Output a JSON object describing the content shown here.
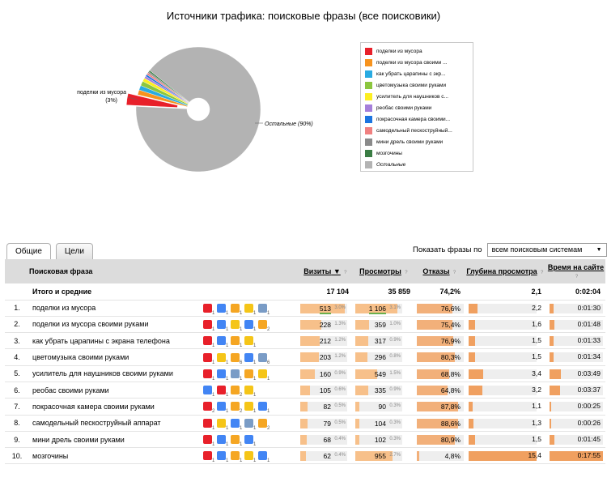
{
  "title": "Источники трафика: поисковые фразы (все поисковики)",
  "chart_data": {
    "type": "pie",
    "title": "Источники трафика: поисковые фразы (все поисковики)",
    "slices": [
      {
        "label": "поделки из мусора",
        "value": 3,
        "color": "#e8202a"
      },
      {
        "label": "поделки из мусора своими ...",
        "value": 1.3,
        "color": "#f7931e"
      },
      {
        "label": "как убрать царапины с экр...",
        "value": 1.2,
        "color": "#29abe2"
      },
      {
        "label": "цветомузыка своими руками",
        "value": 1.2,
        "color": "#8cc63f"
      },
      {
        "label": "усилитель для наушников с...",
        "value": 0.9,
        "color": "#fcee21"
      },
      {
        "label": "реобас своими руками",
        "value": 0.6,
        "color": "#a57fda"
      },
      {
        "label": "покрасочная камера своими...",
        "value": 0.5,
        "color": "#1c75e0"
      },
      {
        "label": "самодельный пескоструйный...",
        "value": 0.5,
        "color": "#f08080"
      },
      {
        "label": "мини дрель своими руками",
        "value": 0.4,
        "color": "#8a8a8a"
      },
      {
        "label": "мозгочины",
        "value": 0.4,
        "color": "#3a7d44"
      },
      {
        "label": "Остальные",
        "value": 90,
        "color": "#b3b3b3"
      }
    ],
    "callouts": {
      "first": "поделки из мусора",
      "first_pct": "(3%)",
      "other": "Остальные (90%)"
    }
  },
  "tabs": [
    "Общие",
    "Цели"
  ],
  "filter": {
    "label": "Показать фразы по",
    "value": "всем поисковым системам"
  },
  "columns": {
    "phrase": "Поисковая фраза",
    "visits": "Визиты",
    "views": "Просмотры",
    "bounces": "Отказы",
    "depth": "Глубина просмотра",
    "time": "Время на сайте"
  },
  "totals": {
    "label": "Итого и средние",
    "visits": "17 104",
    "views": "35 859",
    "bounces": "74,2%",
    "depth": "2,1",
    "time": "0:02:04"
  },
  "engine_colors": {
    "yandex": "#e8202a",
    "google": "#4285f4",
    "mail": "#f5a623",
    "rambler": "#f5c518",
    "bing": "#7a9cc6"
  },
  "rows": [
    {
      "n": "1.",
      "phrase": "поделки из мусора",
      "engines": [
        [
          "yandex",
          "1"
        ],
        [
          "google",
          "1"
        ],
        [
          "mail",
          "1"
        ],
        [
          "rambler",
          "1"
        ],
        [
          "bing",
          "1"
        ]
      ],
      "visits": "513",
      "visits_pct": "3.0%",
      "visits_frac": 0.95,
      "views": "1 106",
      "views_pct": "3.1%",
      "views_frac": 0.9,
      "bounces": "76,6%",
      "bounces_frac": 0.766,
      "depth": "2,2",
      "depth_frac": 0.14,
      "time": "0:01:30",
      "time_frac": 0.09
    },
    {
      "n": "2.",
      "phrase": "поделки из мусора своими руками",
      "engines": [
        [
          "yandex",
          "1"
        ],
        [
          "google",
          "1"
        ],
        [
          "rambler",
          "1"
        ],
        [
          "google",
          "1"
        ],
        [
          "mail",
          "2"
        ]
      ],
      "visits": "228",
      "visits_pct": "1.3%",
      "visits_frac": 0.45,
      "views": "359",
      "views_pct": "1.0%",
      "views_frac": 0.3,
      "bounces": "75,4%",
      "bounces_frac": 0.754,
      "depth": "1,6",
      "depth_frac": 0.1,
      "time": "0:01:48",
      "time_frac": 0.1
    },
    {
      "n": "3.",
      "phrase": "как убрать царапины с экрана телефона",
      "engines": [
        [
          "yandex",
          "1"
        ],
        [
          "google",
          "1"
        ],
        [
          "mail",
          "1"
        ],
        [
          "rambler",
          "1"
        ]
      ],
      "visits": "212",
      "visits_pct": "1.2%",
      "visits_frac": 0.41,
      "views": "317",
      "views_pct": "0.9%",
      "views_frac": 0.27,
      "bounces": "76,9%",
      "bounces_frac": 0.769,
      "depth": "1,5",
      "depth_frac": 0.1,
      "time": "0:01:33",
      "time_frac": 0.09
    },
    {
      "n": "4.",
      "phrase": "цветомузыка своими руками",
      "engines": [
        [
          "yandex",
          "1"
        ],
        [
          "rambler",
          "1"
        ],
        [
          "mail",
          "6"
        ],
        [
          "google",
          "1"
        ],
        [
          "bing",
          "6"
        ]
      ],
      "visits": "203",
      "visits_pct": "1.2%",
      "visits_frac": 0.4,
      "views": "296",
      "views_pct": "0.8%",
      "views_frac": 0.25,
      "bounces": "80,3%",
      "bounces_frac": 0.803,
      "depth": "1,5",
      "depth_frac": 0.1,
      "time": "0:01:34",
      "time_frac": 0.09
    },
    {
      "n": "5.",
      "phrase": "усилитель для наушников своими руками",
      "engines": [
        [
          "yandex",
          "1"
        ],
        [
          "google",
          "1"
        ],
        [
          "bing",
          "1"
        ],
        [
          "mail",
          "1"
        ],
        [
          "rambler",
          "1"
        ]
      ],
      "visits": "160",
      "visits_pct": "0.9%",
      "visits_frac": 0.31,
      "views": "549",
      "views_pct": "1.5%",
      "views_frac": 0.46,
      "bounces": "68,8%",
      "bounces_frac": 0.688,
      "depth": "3,4",
      "depth_frac": 0.22,
      "time": "0:03:49",
      "time_frac": 0.22
    },
    {
      "n": "6.",
      "phrase": "реобас своими руками",
      "engines": [
        [
          "google",
          "1"
        ],
        [
          "yandex",
          "1"
        ],
        [
          "mail",
          "2"
        ],
        [
          "rambler",
          "1"
        ]
      ],
      "visits": "105",
      "visits_pct": "0.6%",
      "visits_frac": 0.2,
      "views": "335",
      "views_pct": "0.9%",
      "views_frac": 0.28,
      "bounces": "64,8%",
      "bounces_frac": 0.648,
      "depth": "3,2",
      "depth_frac": 0.21,
      "time": "0:03:37",
      "time_frac": 0.21
    },
    {
      "n": "7.",
      "phrase": "покрасочная камера своими руками",
      "engines": [
        [
          "yandex",
          "2"
        ],
        [
          "google",
          "1"
        ],
        [
          "mail",
          "2"
        ],
        [
          "rambler",
          "1"
        ],
        [
          "google",
          "1"
        ]
      ],
      "visits": "82",
      "visits_pct": "0.5%",
      "visits_frac": 0.16,
      "views": "90",
      "views_pct": "0.3%",
      "views_frac": 0.08,
      "bounces": "87,8%",
      "bounces_frac": 0.878,
      "depth": "1,1",
      "depth_frac": 0.07,
      "time": "0:00:25",
      "time_frac": 0.03
    },
    {
      "n": "8.",
      "phrase": "самодельный пескоструйный аппарат",
      "engines": [
        [
          "yandex",
          "1"
        ],
        [
          "rambler",
          "1"
        ],
        [
          "google",
          "1"
        ],
        [
          "bing",
          "1"
        ],
        [
          "mail",
          "2"
        ]
      ],
      "visits": "79",
      "visits_pct": "0.5%",
      "visits_frac": 0.15,
      "views": "104",
      "views_pct": "0.3%",
      "views_frac": 0.09,
      "bounces": "88,6%",
      "bounces_frac": 0.886,
      "depth": "1,3",
      "depth_frac": 0.08,
      "time": "0:00:26",
      "time_frac": 0.03
    },
    {
      "n": "9.",
      "phrase": "мини дрель своими руками",
      "engines": [
        [
          "yandex",
          "1"
        ],
        [
          "google",
          "1"
        ],
        [
          "mail",
          "1"
        ],
        [
          "google",
          "1"
        ]
      ],
      "visits": "68",
      "visits_pct": "0.4%",
      "visits_frac": 0.13,
      "views": "102",
      "views_pct": "0.3%",
      "views_frac": 0.09,
      "bounces": "80,9%",
      "bounces_frac": 0.809,
      "depth": "1,5",
      "depth_frac": 0.1,
      "time": "0:01:45",
      "time_frac": 0.1
    },
    {
      "n": "10.",
      "phrase": "мозгочины",
      "engines": [
        [
          "yandex",
          "1"
        ],
        [
          "google",
          "1"
        ],
        [
          "mail",
          "1"
        ],
        [
          "rambler",
          "1"
        ],
        [
          "google",
          "1"
        ]
      ],
      "visits": "62",
      "visits_pct": "0.4%",
      "visits_frac": 0.12,
      "views": "955",
      "views_pct": "2.7%",
      "views_frac": 0.8,
      "bounces": "4,8%",
      "bounces_frac": 0.048,
      "depth": "15,4",
      "depth_frac": 1.0,
      "time": "0:17:55",
      "time_frac": 1.0
    }
  ]
}
